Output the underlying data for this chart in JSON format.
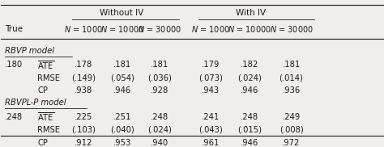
{
  "col_headers_sub": [
    "N = 1000",
    "N = 10000",
    "N = 30000",
    "N = 1000",
    "N = 10000",
    "N = 30000"
  ],
  "col_header_true": "True",
  "section1_label": "RBVP model",
  "section1_true": ".180",
  "section1_rows": [
    [
      "ATE",
      ".178",
      ".181",
      ".181",
      ".179",
      ".182",
      ".181"
    ],
    [
      "RMSE",
      "(.149)",
      "(.054)",
      "(.036)",
      "(.073)",
      "(.024)",
      "(.014)"
    ],
    [
      "CP",
      ".938",
      ".946",
      ".928",
      ".943",
      ".946",
      ".936"
    ]
  ],
  "section2_label": "RBVPL-P model",
  "section2_true": ".248",
  "section2_rows": [
    [
      "ATE",
      ".225",
      ".251",
      ".248",
      ".241",
      ".248",
      ".249"
    ],
    [
      "RMSE",
      "(.103)",
      "(.040)",
      "(.024)",
      "(.043)",
      "(.015)",
      "(.008)"
    ],
    [
      "CP",
      ".912",
      ".953",
      ".940",
      ".961",
      ".946",
      ".972"
    ]
  ],
  "bg_color": "#f0eeeb",
  "text_color": "#1a1a1a"
}
